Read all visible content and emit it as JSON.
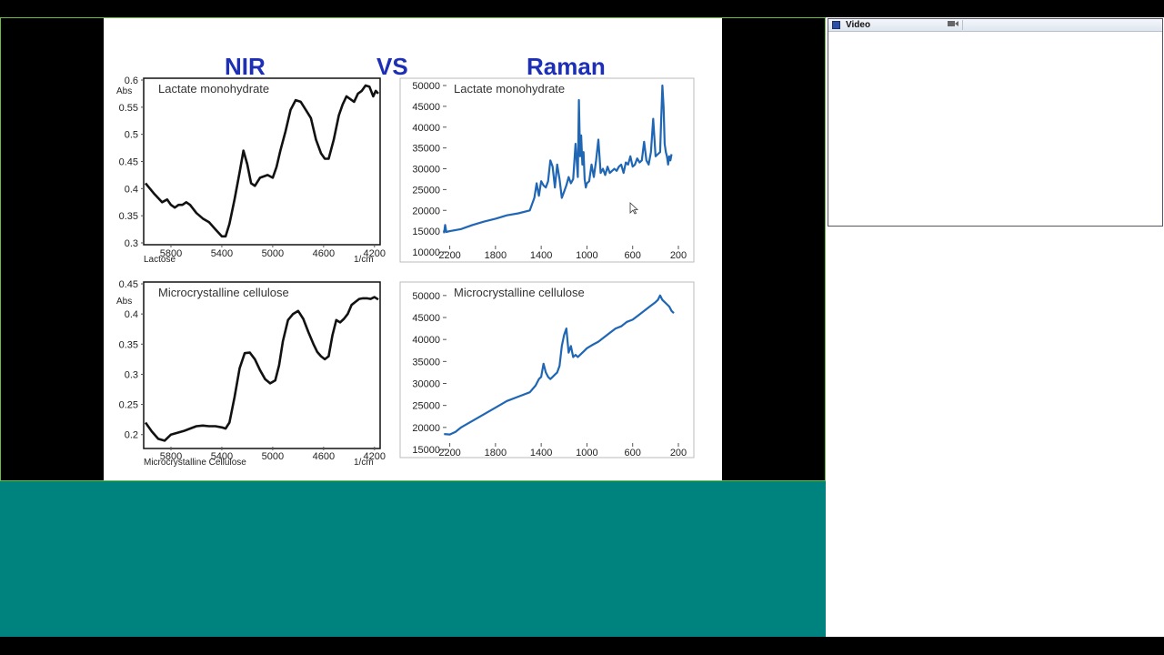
{
  "slide": {
    "headings": {
      "nir": "NIR",
      "vs": "VS",
      "raman": "Raman"
    }
  },
  "video_pod": {
    "title": "Video",
    "icons": [
      "pod-menu-icon",
      "camera-icon"
    ]
  },
  "chart_data": [
    {
      "type": "line",
      "panel": "nir-top",
      "title": "Lactate monohydrate",
      "xlabel": "Lactose",
      "xunit": "1/cm",
      "yunit": "Abs",
      "x_ticks": [
        5800,
        5400,
        5000,
        4600,
        4200
      ],
      "y_ticks": [
        0.3,
        0.35,
        0.4,
        0.45,
        0.5,
        0.55,
        0.6
      ],
      "xlim": [
        6000,
        4170
      ],
      "ylim": [
        0.3,
        0.6
      ],
      "series": [
        {
          "color": "#111111",
          "x": [
            6000,
            5930,
            5870,
            5830,
            5800,
            5770,
            5740,
            5710,
            5680,
            5650,
            5600,
            5550,
            5500,
            5450,
            5400,
            5370,
            5340,
            5300,
            5260,
            5230,
            5200,
            5170,
            5140,
            5100,
            5040,
            5000,
            4970,
            4940,
            4900,
            4860,
            4820,
            4780,
            4740,
            4700,
            4660,
            4620,
            4590,
            4560,
            4520,
            4480,
            4450,
            4420,
            4390,
            4360,
            4330,
            4300,
            4270,
            4240,
            4210,
            4190,
            4170
          ],
          "y": [
            0.41,
            0.39,
            0.375,
            0.38,
            0.37,
            0.365,
            0.37,
            0.37,
            0.375,
            0.37,
            0.355,
            0.345,
            0.338,
            0.325,
            0.312,
            0.312,
            0.335,
            0.38,
            0.43,
            0.47,
            0.445,
            0.41,
            0.405,
            0.42,
            0.425,
            0.42,
            0.44,
            0.47,
            0.505,
            0.545,
            0.563,
            0.56,
            0.545,
            0.53,
            0.49,
            0.465,
            0.455,
            0.455,
            0.49,
            0.535,
            0.555,
            0.57,
            0.565,
            0.56,
            0.575,
            0.58,
            0.59,
            0.588,
            0.57,
            0.58,
            0.575
          ]
        }
      ]
    },
    {
      "type": "line",
      "panel": "raman-top",
      "title": "Lactate monohydrate",
      "x_ticks": [
        2200,
        1800,
        1400,
        1000,
        600,
        200
      ],
      "y_ticks": [
        10000,
        15000,
        20000,
        25000,
        30000,
        35000,
        40000,
        45000,
        50000
      ],
      "xlim": [
        2300,
        200
      ],
      "ylim": [
        10000,
        50000
      ],
      "series": [
        {
          "color": "#1f66b4",
          "x": [
            2250,
            2240,
            2230,
            2200,
            2100,
            2000,
            1900,
            1800,
            1700,
            1600,
            1500,
            1460,
            1440,
            1420,
            1400,
            1380,
            1360,
            1340,
            1320,
            1300,
            1280,
            1260,
            1240,
            1220,
            1200,
            1180,
            1160,
            1140,
            1120,
            1100,
            1080,
            1070,
            1060,
            1050,
            1040,
            1030,
            1020,
            1010,
            1000,
            980,
            960,
            940,
            920,
            900,
            880,
            860,
            840,
            820,
            800,
            780,
            760,
            740,
            720,
            700,
            680,
            660,
            640,
            620,
            600,
            580,
            560,
            540,
            520,
            500,
            480,
            460,
            440,
            420,
            400,
            380,
            360,
            350,
            340,
            330,
            320,
            310,
            300,
            290,
            280,
            270,
            260
          ],
          "y": [
            14500,
            16500,
            14800,
            15000,
            15500,
            16500,
            17300,
            18000,
            18800,
            19300,
            20000,
            23000,
            26500,
            23500,
            27000,
            26000,
            25500,
            27000,
            32000,
            30500,
            25500,
            31000,
            27500,
            23000,
            24500,
            26000,
            28000,
            26500,
            27500,
            36000,
            28000,
            46500,
            33000,
            38000,
            31000,
            34000,
            27500,
            25500,
            26500,
            27000,
            31000,
            28000,
            32000,
            37000,
            29000,
            30000,
            28500,
            30500,
            29000,
            29500,
            30000,
            29500,
            30500,
            31000,
            29000,
            31500,
            31000,
            33000,
            30500,
            31000,
            32500,
            31500,
            32000,
            36500,
            32000,
            31000,
            34000,
            42000,
            33000,
            33500,
            34000,
            42000,
            50000,
            45000,
            36000,
            34000,
            33000,
            31000,
            33000,
            32000,
            33500
          ]
        }
      ]
    },
    {
      "type": "line",
      "panel": "nir-bottom",
      "title": "Microcrystalline cellulose",
      "xlabel": "Microcrystalline Cellulose",
      "xunit": "1/cm",
      "yunit": "Abs",
      "x_ticks": [
        5800,
        5400,
        5000,
        4600,
        4200
      ],
      "y_ticks": [
        0.2,
        0.25,
        0.3,
        0.35,
        0.4,
        0.45
      ],
      "xlim": [
        6000,
        4170
      ],
      "ylim": [
        0.18,
        0.45
      ],
      "series": [
        {
          "color": "#111111",
          "x": [
            6000,
            5950,
            5900,
            5850,
            5800,
            5750,
            5700,
            5650,
            5600,
            5550,
            5500,
            5450,
            5400,
            5370,
            5340,
            5300,
            5260,
            5220,
            5180,
            5140,
            5100,
            5060,
            5020,
            4980,
            4950,
            4920,
            4880,
            4840,
            4800,
            4760,
            4720,
            4680,
            4650,
            4620,
            4590,
            4560,
            4530,
            4500,
            4470,
            4440,
            4410,
            4380,
            4350,
            4320,
            4290,
            4260,
            4230,
            4200,
            4170
          ],
          "y": [
            0.22,
            0.205,
            0.193,
            0.19,
            0.2,
            0.203,
            0.206,
            0.21,
            0.214,
            0.215,
            0.214,
            0.214,
            0.212,
            0.21,
            0.22,
            0.262,
            0.31,
            0.335,
            0.336,
            0.325,
            0.307,
            0.292,
            0.285,
            0.29,
            0.315,
            0.355,
            0.39,
            0.4,
            0.405,
            0.392,
            0.37,
            0.35,
            0.337,
            0.33,
            0.325,
            0.33,
            0.365,
            0.39,
            0.386,
            0.392,
            0.4,
            0.415,
            0.42,
            0.425,
            0.426,
            0.426,
            0.425,
            0.428,
            0.424
          ]
        }
      ]
    },
    {
      "type": "line",
      "panel": "raman-bottom",
      "title": "Microcrystalline cellulose",
      "x_ticks": [
        2200,
        1800,
        1400,
        1000,
        600,
        200
      ],
      "y_ticks": [
        15000,
        20000,
        25000,
        30000,
        35000,
        40000,
        45000,
        50000
      ],
      "xlim": [
        2300,
        200
      ],
      "ylim": [
        15000,
        51000
      ],
      "series": [
        {
          "color": "#1f66b4",
          "x": [
            2250,
            2200,
            2150,
            2100,
            2000,
            1900,
            1800,
            1700,
            1600,
            1500,
            1450,
            1420,
            1400,
            1380,
            1360,
            1340,
            1320,
            1300,
            1280,
            1260,
            1240,
            1220,
            1200,
            1180,
            1160,
            1140,
            1120,
            1100,
            1080,
            1060,
            1040,
            1020,
            1000,
            950,
            900,
            850,
            800,
            750,
            700,
            650,
            600,
            550,
            500,
            450,
            400,
            380,
            360,
            340,
            320,
            300,
            280,
            260,
            240
          ],
          "y": [
            18500,
            18400,
            19000,
            20000,
            21500,
            23000,
            24500,
            26000,
            27000,
            28000,
            29500,
            31000,
            31500,
            34500,
            32500,
            31500,
            31000,
            31500,
            32000,
            32500,
            34000,
            38500,
            41000,
            42500,
            37000,
            38500,
            36000,
            36500,
            36000,
            36500,
            37000,
            37500,
            38000,
            38800,
            39500,
            40500,
            41500,
            42500,
            43000,
            44000,
            44500,
            45500,
            46500,
            47500,
            48500,
            49000,
            50000,
            49000,
            48500,
            48000,
            47500,
            46500,
            46000
          ]
        }
      ]
    }
  ]
}
